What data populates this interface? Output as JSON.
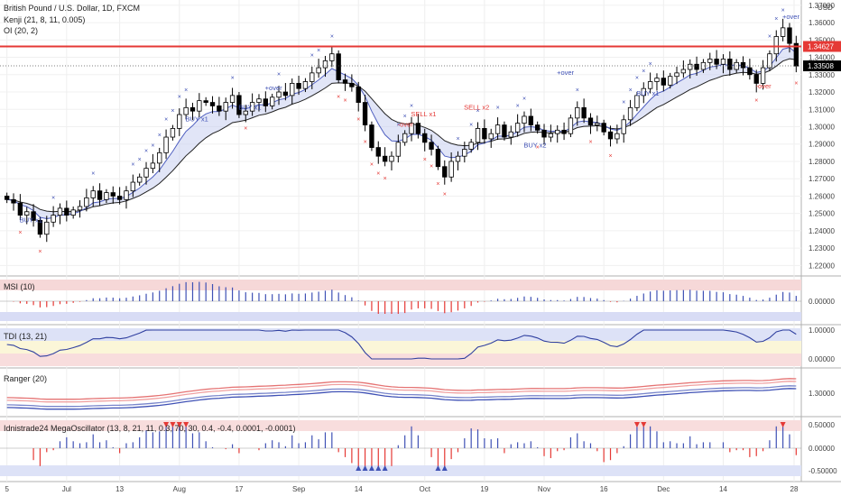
{
  "legend": {
    "title": "British Pound / U.S. Dollar, 1D, FXCM",
    "kenji": "Kenji (21, 8, 11, 0.005)",
    "oi": "OI (20, 2)"
  },
  "panes": {
    "msi": "MSI (10)",
    "tdi": "TDI (13, 21)",
    "ranger": "Ranger (20)",
    "mega": "Idnistrade24 MegaOscillator (13, 8, 21, 11, 0.3, 70, 30, 0.4, -0.4, 0.0001, -0.0001)"
  },
  "colors": {
    "up_candle": "#ffffff",
    "down_candle": "#000000",
    "resistance": "#e53935",
    "buy_signal": "#3f51b5",
    "sell_signal": "#e53935",
    "oi_band_fill": "#c8d0f0"
  },
  "chart_data": [
    {
      "type": "candlestick",
      "symbol": "British Pound / U.S. Dollar",
      "timeframe": "1D",
      "y_axis": {
        "unit": "USD",
        "ticks": [
          "1.22000",
          "1.23000",
          "1.24000",
          "1.25000",
          "1.26000",
          "1.27000",
          "1.28000",
          "1.29000",
          "1.30000",
          "1.31000",
          "1.32000",
          "1.33000",
          "1.34000",
          "1.35000",
          "1.36000",
          "1.37000"
        ],
        "range": [
          1.215,
          1.372
        ]
      },
      "x_axis": {
        "ticks": [
          "5",
          "Jul",
          "13",
          "Aug",
          "17",
          "Sep",
          "14",
          "Oct",
          "19",
          "Nov",
          "16",
          "Dec",
          "14",
          "28"
        ]
      },
      "resistance_level": 1.34627,
      "resistance_label": "1.34627",
      "last_price": 1.33508,
      "last_price_label": "1.33508",
      "close_series": [
        1.258,
        1.256,
        1.249,
        1.251,
        1.246,
        1.238,
        1.245,
        1.249,
        1.253,
        1.249,
        1.252,
        1.254,
        1.259,
        1.263,
        1.258,
        1.262,
        1.26,
        1.258,
        1.263,
        1.268,
        1.271,
        1.276,
        1.279,
        1.285,
        1.294,
        1.299,
        1.307,
        1.311,
        1.309,
        1.315,
        1.314,
        1.312,
        1.309,
        1.314,
        1.318,
        1.307,
        1.309,
        1.314,
        1.316,
        1.312,
        1.317,
        1.32,
        1.318,
        1.325,
        1.322,
        1.326,
        1.331,
        1.334,
        1.338,
        1.342,
        1.327,
        1.325,
        1.323,
        1.314,
        1.301,
        1.288,
        1.283,
        1.28,
        1.283,
        1.291,
        1.296,
        1.302,
        1.296,
        1.291,
        1.287,
        1.277,
        1.271,
        1.28,
        1.283,
        1.287,
        1.291,
        1.299,
        1.293,
        1.296,
        1.301,
        1.294,
        1.297,
        1.302,
        1.306,
        1.301,
        1.298,
        1.294,
        1.296,
        1.298,
        1.296,
        1.305,
        1.311,
        1.305,
        1.301,
        1.302,
        1.297,
        1.293,
        1.296,
        1.304,
        1.311,
        1.318,
        1.322,
        1.326,
        1.328,
        1.324,
        1.329,
        1.331,
        1.333,
        1.336,
        1.333,
        1.337,
        1.339,
        1.336,
        1.339,
        1.333,
        1.337,
        1.334,
        1.33,
        1.325,
        1.334,
        1.342,
        1.352,
        1.357,
        1.348,
        1.335
      ],
      "signals": [
        {
          "text": "BUY x1",
          "kind": "buy"
        },
        {
          "text": "SELL x1",
          "kind": "sell"
        },
        {
          "text": "SELL x2",
          "kind": "sell"
        },
        {
          "text": "BUY x2",
          "kind": "buy"
        },
        {
          "text": "+over",
          "kind": "buy"
        },
        {
          "text": "-over",
          "kind": "sell"
        }
      ]
    },
    {
      "type": "histogram",
      "name": "MSI (10)",
      "y_ticks": [
        "0.00000"
      ]
    },
    {
      "type": "line",
      "name": "TDI (13, 21)",
      "y_ticks": [
        "1.00000",
        "0.00000"
      ]
    },
    {
      "type": "line",
      "name": "Ranger (20)",
      "y_ticks": [
        "1.30000"
      ]
    },
    {
      "type": "histogram",
      "name": "Idnistrade24 MegaOscillator",
      "y_ticks": [
        "0.50000",
        "0.00000",
        "-0.50000"
      ]
    }
  ]
}
